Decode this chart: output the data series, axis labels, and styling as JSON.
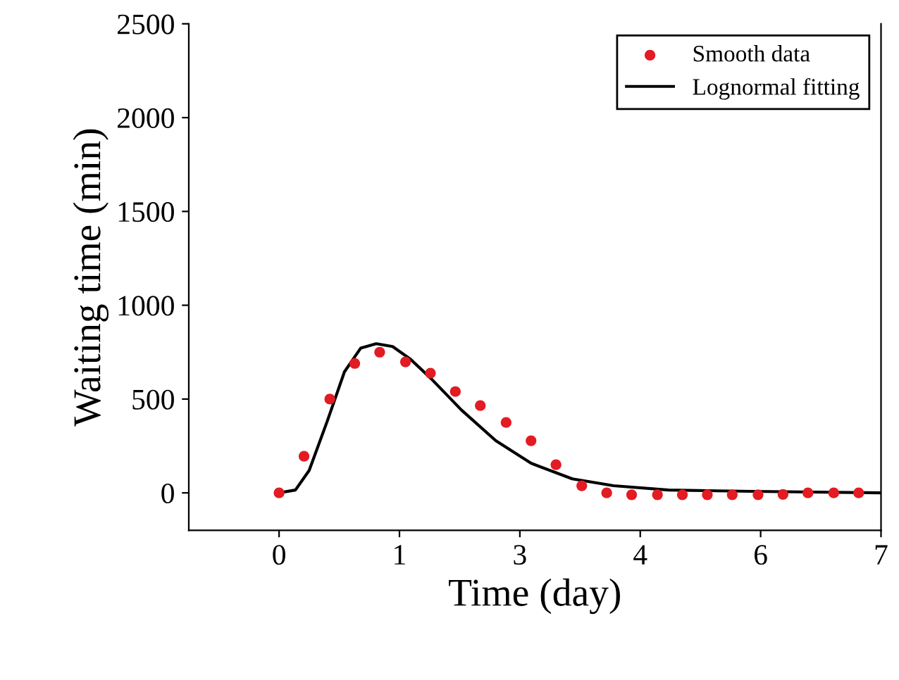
{
  "chart_data": {
    "type": "scatter",
    "xlabel": "Time (day)",
    "ylabel": "Waiting time (min)",
    "series": [
      {
        "name": "Smooth data",
        "color": "#e31b23",
        "marker": "circle",
        "x": [
          0,
          0.29,
          0.59,
          0.88,
          1.17,
          1.47,
          1.76,
          2.05,
          2.34,
          2.64,
          2.93,
          3.22,
          3.52,
          3.81,
          4.1,
          4.4,
          4.69,
          4.98,
          5.27,
          5.57,
          5.86,
          6.15,
          6.45,
          6.74
        ],
        "values": [
          0,
          195,
          500,
          690,
          750,
          698,
          638,
          540,
          465,
          375,
          278,
          150,
          38,
          0,
          -10,
          -10,
          -10,
          -10,
          -10,
          -10,
          -8,
          0,
          0,
          0
        ]
      },
      {
        "name": "Lognormal fitting",
        "type": "line",
        "color": "#000000",
        "x": [
          0,
          0.19,
          0.35,
          0.56,
          0.76,
          0.95,
          1.13,
          1.32,
          1.53,
          1.77,
          2.12,
          2.52,
          2.93,
          3.41,
          3.89,
          4.53,
          5.5,
          7.0
        ],
        "values": [
          0,
          15,
          120,
          382,
          645,
          772,
          795,
          780,
          712,
          608,
          442,
          278,
          158,
          75,
          38,
          15,
          8,
          0
        ]
      }
    ],
    "xlim": [
      -1.05,
      7
    ],
    "xticks": [
      0,
      {
        "value": 1.4,
        "label": "1"
      },
      {
        "value": 2.8,
        "label": "3"
      },
      {
        "value": 4.2,
        "label": "4"
      },
      {
        "value": 5.6,
        "label": "6"
      },
      7
    ],
    "ylim": [
      -200,
      2500
    ],
    "yticks": [
      0,
      500,
      1000,
      1500,
      2000,
      2500
    ],
    "grid": false,
    "legend": "top right"
  }
}
